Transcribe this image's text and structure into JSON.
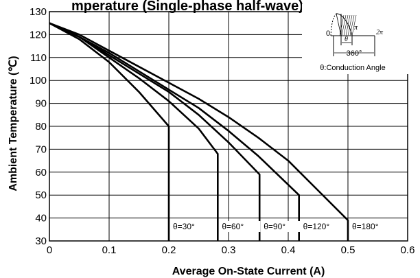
{
  "chart_data": {
    "type": "line",
    "title": "mperature (Single-phase half-wave)",
    "xlabel": "Average On-State Current (A)",
    "ylabel": "Ambient Temperature (℃)",
    "xlim": [
      0,
      0.6
    ],
    "ylim": [
      30,
      130
    ],
    "x_ticks": [
      "0",
      "0.1",
      "0.2",
      "0.3",
      "0.4",
      "0.5",
      "0.6"
    ],
    "y_ticks": [
      "30",
      "40",
      "50",
      "60",
      "70",
      "80",
      "90",
      "100",
      "110",
      "120",
      "130"
    ],
    "grid": true,
    "series": [
      {
        "name": "θ=30°",
        "x": [
          0,
          0.05,
          0.1,
          0.15,
          0.2,
          0.2
        ],
        "y": [
          125,
          118,
          108,
          95,
          80,
          30
        ]
      },
      {
        "name": "θ=60°",
        "x": [
          0,
          0.05,
          0.1,
          0.15,
          0.2,
          0.25,
          0.282,
          0.282
        ],
        "y": [
          125,
          119,
          110,
          101,
          91,
          79,
          68,
          30
        ]
      },
      {
        "name": "θ=90°",
        "x": [
          0,
          0.05,
          0.1,
          0.15,
          0.2,
          0.25,
          0.3,
          0.352,
          0.352
        ],
        "y": [
          125,
          119,
          111,
          103,
          95,
          85,
          73,
          59,
          30
        ]
      },
      {
        "name": "θ=120°",
        "x": [
          0,
          0.05,
          0.1,
          0.15,
          0.2,
          0.25,
          0.3,
          0.35,
          0.418,
          0.418
        ],
        "y": [
          125,
          119,
          112,
          104,
          96,
          88,
          78,
          67,
          50,
          30
        ]
      },
      {
        "name": "θ=180°",
        "x": [
          0,
          0.05,
          0.1,
          0.15,
          0.2,
          0.25,
          0.3,
          0.35,
          0.4,
          0.45,
          0.5,
          0.5
        ],
        "y": [
          125,
          120,
          113,
          106,
          99,
          92,
          84,
          75,
          65,
          52,
          39,
          30
        ]
      }
    ],
    "inset": {
      "zero_label": "0",
      "pi_label": "π",
      "two_pi_label": "2π",
      "theta_label": "θ",
      "deg_label": "360°",
      "caption": "θ:Conduction Angle"
    }
  }
}
